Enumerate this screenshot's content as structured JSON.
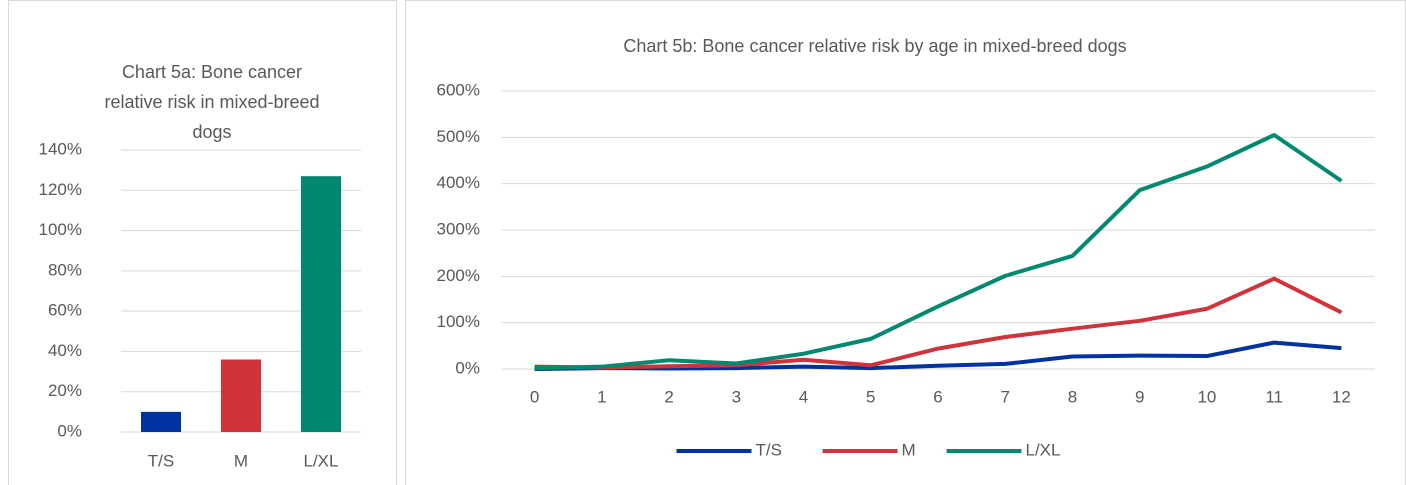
{
  "chart_data": [
    {
      "type": "bar",
      "title": "Chart 5a: Bone cancer relative risk in mixed-breed dogs",
      "categories": [
        "T/S",
        "M",
        "L/XL"
      ],
      "values": [
        10,
        36,
        127
      ],
      "colors": [
        "#0033a0",
        "#d0343a",
        "#00896f"
      ],
      "ylim": [
        0,
        140
      ],
      "yticks": [
        {
          "value": 0,
          "label": "0%"
        },
        {
          "value": 20,
          "label": "20%"
        },
        {
          "value": 40,
          "label": "40%"
        },
        {
          "value": 60,
          "label": "60%"
        },
        {
          "value": 80,
          "label": "80%"
        },
        {
          "value": 100,
          "label": "100%"
        },
        {
          "value": 120,
          "label": "120%"
        },
        {
          "value": 140,
          "label": "140%"
        }
      ],
      "grid": true
    },
    {
      "type": "line",
      "title": "Chart 5b: Bone cancer relative risk by age in mixed-breed dogs",
      "categories": [
        0,
        1,
        2,
        3,
        4,
        5,
        6,
        7,
        8,
        9,
        10,
        11,
        12
      ],
      "series": [
        {
          "name": "T/S",
          "color": "#0033a0",
          "values": [
            0,
            2,
            1,
            2,
            5,
            2,
            7,
            11,
            27,
            29,
            28,
            57,
            45
          ]
        },
        {
          "name": "M",
          "color": "#d0343a",
          "values": [
            5,
            3,
            6,
            8,
            20,
            8,
            44,
            69,
            87,
            104,
            130,
            195,
            122
          ]
        },
        {
          "name": "L/XL",
          "color": "#00896f",
          "values": [
            2,
            5,
            19,
            12,
            33,
            65,
            135,
            201,
            244,
            386,
            437,
            505,
            406
          ]
        }
      ],
      "ylim": [
        0,
        600
      ],
      "yticks": [
        {
          "value": 0,
          "label": "0%"
        },
        {
          "value": 100,
          "label": "100%"
        },
        {
          "value": 200,
          "label": "200%"
        },
        {
          "value": 300,
          "label": "300%"
        },
        {
          "value": 400,
          "label": "400%"
        },
        {
          "value": 500,
          "label": "500%"
        },
        {
          "value": 600,
          "label": "600%"
        }
      ],
      "grid": true,
      "legend": "bottom"
    }
  ]
}
